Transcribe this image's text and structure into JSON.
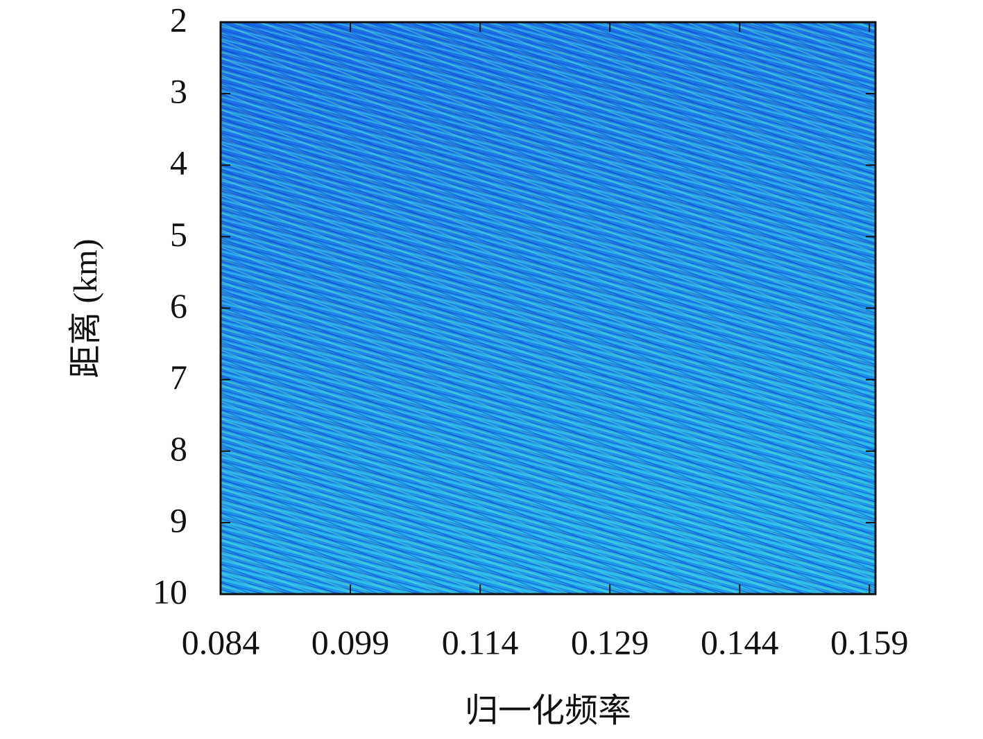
{
  "chart_data": {
    "type": "heatmap",
    "x_label": "归一化频率",
    "y_label": "距离 (km)",
    "xlim": [
      0.084,
      0.1597
    ],
    "xticks": [
      0.084,
      0.099,
      0.114,
      0.129,
      0.144,
      0.159
    ],
    "ylim": [
      2,
      10
    ],
    "yticks": [
      2,
      3,
      4,
      5,
      6,
      7,
      8,
      9,
      10
    ],
    "y_inverted": true,
    "grid": false
  }
}
